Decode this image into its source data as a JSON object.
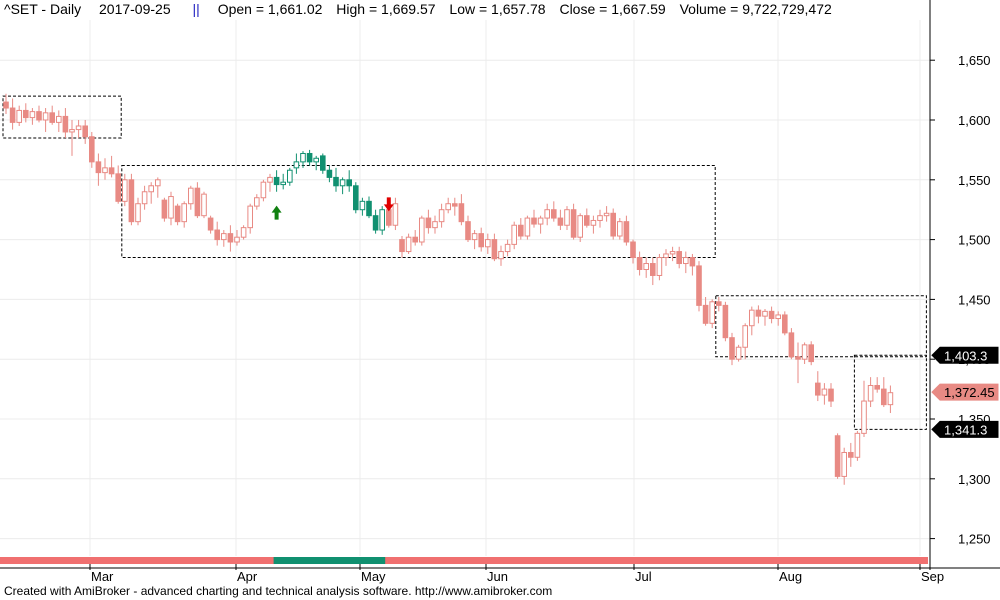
{
  "header": {
    "symbol": "^SET - Daily",
    "date": "2017-09-25",
    "open_label": "Open = 1,661.02",
    "high_label": "High = 1,669.57",
    "low_label": "Low = 1,657.78",
    "close_label": "Close = 1,667.59",
    "volume_label": "Volume = 9,722,729,472"
  },
  "footer": {
    "credit": "Created with AmiBroker - advanced charting and technical analysis software. http://www.amibroker.com"
  },
  "chart_data": {
    "type": "candlestick",
    "y_ticks": [
      1250,
      1300,
      1350,
      1400,
      1450,
      1500,
      1550,
      1600,
      1650
    ],
    "y_tick_labels": [
      "1,250",
      "1,300",
      "1,350",
      "1,400",
      "1,450",
      "1,500",
      "1,550",
      "1,600",
      "1,650"
    ],
    "ylim": [
      1230,
      1700
    ],
    "x_ticks": [
      "Mar",
      "Apr",
      "May",
      "Jun",
      "Jul",
      "Aug",
      "Sep"
    ],
    "price_labels": [
      {
        "text": "1,403.3",
        "value": 1403.3,
        "style": "black"
      },
      {
        "text": "1,372.45",
        "value": 1372.45,
        "style": "salmon"
      },
      {
        "text": "1,341.3",
        "value": 1341.3,
        "style": "black"
      }
    ],
    "colors": {
      "up": "#e88a84",
      "down": "#e88a84",
      "signal": "#109070",
      "arrow_up": "#108010",
      "arrow_down": "#e00000",
      "ribbon": "#f07070"
    },
    "signals": [
      {
        "type": "buy",
        "bar": 41,
        "value": 1520
      },
      {
        "type": "sell",
        "bar": 58,
        "value": 1532
      }
    ],
    "boxes": [
      {
        "bar_start": 0,
        "bar_end": 17,
        "high": 1620,
        "low": 1585
      },
      {
        "bar_start": 18,
        "bar_end": 107,
        "high": 1562,
        "low": 1485
      },
      {
        "bar_start": 108,
        "bar_end": 139,
        "high": 1453,
        "low": 1402
      },
      {
        "bar_start": 129,
        "bar_end": 139,
        "high": 1403.3,
        "low": 1341.3
      }
    ],
    "bars": [
      [
        1615,
        1622,
        1605,
        1610
      ],
      [
        1610,
        1618,
        1592,
        1598
      ],
      [
        1598,
        1612,
        1595,
        1608
      ],
      [
        1608,
        1614,
        1598,
        1602
      ],
      [
        1602,
        1610,
        1596,
        1607
      ],
      [
        1607,
        1612,
        1598,
        1600
      ],
      [
        1600,
        1610,
        1590,
        1606
      ],
      [
        1606,
        1612,
        1596,
        1598
      ],
      [
        1598,
        1608,
        1590,
        1603
      ],
      [
        1603,
        1610,
        1585,
        1590
      ],
      [
        1590,
        1600,
        1570,
        1592
      ],
      [
        1592,
        1600,
        1585,
        1595
      ],
      [
        1595,
        1600,
        1580,
        1586
      ],
      [
        1586,
        1590,
        1560,
        1565
      ],
      [
        1565,
        1572,
        1545,
        1556
      ],
      [
        1556,
        1568,
        1550,
        1560
      ],
      [
        1560,
        1570,
        1552,
        1555
      ],
      [
        1555,
        1562,
        1530,
        1532
      ],
      [
        1532,
        1555,
        1528,
        1550
      ],
      [
        1550,
        1555,
        1512,
        1515
      ],
      [
        1515,
        1535,
        1512,
        1530
      ],
      [
        1530,
        1545,
        1525,
        1540
      ],
      [
        1540,
        1548,
        1530,
        1545
      ],
      [
        1545,
        1552,
        1535,
        1550
      ],
      [
        1533,
        1535,
        1515,
        1518
      ],
      [
        1518,
        1540,
        1512,
        1536
      ],
      [
        1528,
        1530,
        1512,
        1515
      ],
      [
        1515,
        1532,
        1510,
        1530
      ],
      [
        1530,
        1545,
        1525,
        1543
      ],
      [
        1543,
        1548,
        1518,
        1520
      ],
      [
        1520,
        1540,
        1518,
        1538
      ],
      [
        1518,
        1520,
        1505,
        1508
      ],
      [
        1508,
        1515,
        1495,
        1500
      ],
      [
        1500,
        1508,
        1494,
        1505
      ],
      [
        1505,
        1512,
        1490,
        1498
      ],
      [
        1498,
        1508,
        1495,
        1502
      ],
      [
        1502,
        1512,
        1500,
        1510
      ],
      [
        1510,
        1530,
        1505,
        1528
      ],
      [
        1528,
        1538,
        1525,
        1535
      ],
      [
        1535,
        1550,
        1532,
        1548
      ],
      [
        1548,
        1555,
        1540,
        1552
      ],
      [
        1552,
        1558,
        1540,
        1546
      ],
      [
        1546,
        1555,
        1542,
        1548
      ],
      [
        1548,
        1560,
        1545,
        1558
      ],
      [
        1560,
        1572,
        1555,
        1565
      ],
      [
        1565,
        1574,
        1560,
        1572
      ],
      [
        1572,
        1575,
        1562,
        1565
      ],
      [
        1565,
        1570,
        1558,
        1568
      ],
      [
        1570,
        1572,
        1555,
        1558
      ],
      [
        1558,
        1562,
        1548,
        1552
      ],
      [
        1552,
        1560,
        1540,
        1545
      ],
      [
        1545,
        1552,
        1538,
        1550
      ],
      [
        1550,
        1558,
        1540,
        1545
      ],
      [
        1545,
        1548,
        1522,
        1525
      ],
      [
        1525,
        1535,
        1520,
        1532
      ],
      [
        1532,
        1536,
        1518,
        1520
      ],
      [
        1520,
        1525,
        1505,
        1508
      ],
      [
        1508,
        1528,
        1504,
        1525
      ],
      [
        1525,
        1532,
        1510,
        1512
      ],
      [
        1512,
        1535,
        1508,
        1530
      ],
      [
        1500,
        1503,
        1485,
        1490
      ],
      [
        1490,
        1505,
        1488,
        1502
      ],
      [
        1502,
        1508,
        1495,
        1498
      ],
      [
        1498,
        1520,
        1495,
        1518
      ],
      [
        1518,
        1525,
        1505,
        1510
      ],
      [
        1510,
        1520,
        1505,
        1515
      ],
      [
        1515,
        1530,
        1510,
        1525
      ],
      [
        1525,
        1535,
        1522,
        1530
      ],
      [
        1530,
        1535,
        1520,
        1528
      ],
      [
        1530,
        1538,
        1512,
        1515
      ],
      [
        1515,
        1520,
        1498,
        1500
      ],
      [
        1500,
        1508,
        1492,
        1505
      ],
      [
        1505,
        1510,
        1490,
        1494
      ],
      [
        1494,
        1505,
        1488,
        1500
      ],
      [
        1500,
        1505,
        1482,
        1484
      ],
      [
        1484,
        1495,
        1478,
        1490
      ],
      [
        1490,
        1500,
        1486,
        1496
      ],
      [
        1496,
        1515,
        1492,
        1512
      ],
      [
        1512,
        1518,
        1500,
        1503
      ],
      [
        1503,
        1520,
        1500,
        1518
      ],
      [
        1518,
        1525,
        1510,
        1513
      ],
      [
        1513,
        1520,
        1505,
        1518
      ],
      [
        1518,
        1530,
        1512,
        1525
      ],
      [
        1525,
        1532,
        1515,
        1518
      ],
      [
        1518,
        1525,
        1508,
        1512
      ],
      [
        1512,
        1528,
        1508,
        1525
      ],
      [
        1525,
        1530,
        1500,
        1502
      ],
      [
        1502,
        1522,
        1498,
        1520
      ],
      [
        1520,
        1526,
        1510,
        1512
      ],
      [
        1512,
        1520,
        1505,
        1516
      ],
      [
        1516,
        1525,
        1510,
        1520
      ],
      [
        1520,
        1528,
        1515,
        1522
      ],
      [
        1522,
        1526,
        1500,
        1503
      ],
      [
        1503,
        1518,
        1500,
        1515
      ],
      [
        1515,
        1520,
        1495,
        1498
      ],
      [
        1498,
        1500,
        1480,
        1485
      ],
      [
        1485,
        1490,
        1470,
        1475
      ],
      [
        1475,
        1485,
        1468,
        1480
      ],
      [
        1480,
        1485,
        1462,
        1470
      ],
      [
        1470,
        1488,
        1466,
        1485
      ],
      [
        1485,
        1492,
        1478,
        1488
      ],
      [
        1488,
        1494,
        1482,
        1490
      ],
      [
        1490,
        1494,
        1476,
        1480
      ],
      [
        1480,
        1490,
        1472,
        1485
      ],
      [
        1485,
        1488,
        1470,
        1478
      ],
      [
        1478,
        1482,
        1440,
        1445
      ],
      [
        1445,
        1452,
        1428,
        1430
      ],
      [
        1430,
        1450,
        1426,
        1448
      ],
      [
        1448,
        1452,
        1440,
        1445
      ],
      [
        1445,
        1448,
        1415,
        1418
      ],
      [
        1418,
        1422,
        1395,
        1400
      ],
      [
        1400,
        1412,
        1398,
        1410
      ],
      [
        1410,
        1430,
        1400,
        1428
      ],
      [
        1428,
        1444,
        1420,
        1441
      ],
      [
        1441,
        1445,
        1430,
        1436
      ],
      [
        1436,
        1442,
        1428,
        1440
      ],
      [
        1440,
        1444,
        1430,
        1434
      ],
      [
        1434,
        1440,
        1428,
        1437
      ],
      [
        1437,
        1440,
        1420,
        1422
      ],
      [
        1422,
        1426,
        1400,
        1402
      ],
      [
        1402,
        1414,
        1380,
        1400
      ],
      [
        1400,
        1414,
        1396,
        1412
      ],
      [
        1412,
        1415,
        1395,
        1398
      ],
      [
        1380,
        1390,
        1365,
        1370
      ],
      [
        1370,
        1380,
        1362,
        1375
      ],
      [
        1375,
        1380,
        1360,
        1365
      ],
      [
        1336,
        1338,
        1300,
        1302
      ],
      [
        1302,
        1326,
        1295,
        1322
      ],
      [
        1322,
        1330,
        1310,
        1318
      ],
      [
        1318,
        1340,
        1315,
        1338
      ],
      [
        1338,
        1382,
        1335,
        1365
      ],
      [
        1365,
        1385,
        1360,
        1378
      ],
      [
        1378,
        1385,
        1372,
        1375
      ],
      [
        1375,
        1385,
        1360,
        1362
      ],
      [
        1362,
        1378,
        1355,
        1372
      ]
    ]
  }
}
